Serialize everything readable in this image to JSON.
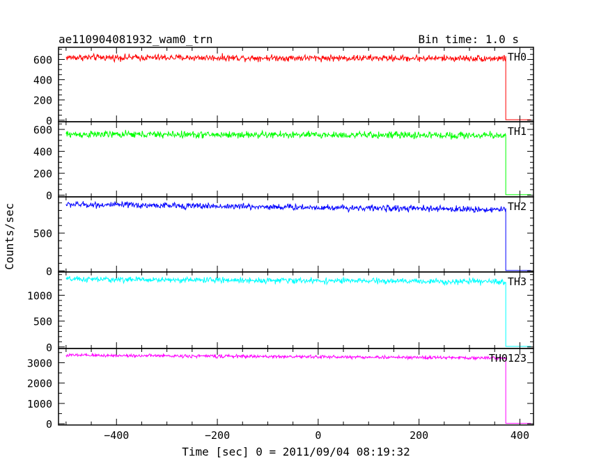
{
  "title": "ae110904081932_wam0_trn",
  "bin_time": "Bin time: 1.0 s",
  "ylabel": "Counts/sec",
  "xlabel": "Time [sec] 0 = 2011/09/04 08:19:32",
  "chart_data": [
    {
      "type": "line",
      "name": "TH0",
      "color": "#ff0000",
      "xlim": [
        -515,
        427
      ],
      "ylim": [
        -15,
        720
      ],
      "yticks": [
        0,
        200,
        400,
        600
      ],
      "minor_step": 50,
      "level_start": 620,
      "level_end": 610,
      "noise": 35,
      "drop_x": 372,
      "post_value": 5,
      "start_x": -500
    },
    {
      "type": "line",
      "name": "TH1",
      "color": "#00ff00",
      "xlim": [
        -515,
        427
      ],
      "ylim": [
        -15,
        670
      ],
      "yticks": [
        0,
        200,
        400,
        600
      ],
      "minor_step": 50,
      "level_start": 555,
      "level_end": 545,
      "noise": 35,
      "drop_x": 372,
      "post_value": 5,
      "start_x": -500
    },
    {
      "type": "line",
      "name": "TH2",
      "color": "#0000ff",
      "xlim": [
        -515,
        427
      ],
      "ylim": [
        -15,
        980
      ],
      "yticks": [
        0,
        500
      ],
      "minor_step": 100,
      "level_start": 880,
      "level_end": 810,
      "noise": 45,
      "drop_x": 372,
      "post_value": 5,
      "start_x": -500
    },
    {
      "type": "line",
      "name": "TH3",
      "color": "#00ffff",
      "xlim": [
        -515,
        427
      ],
      "ylim": [
        -30,
        1450
      ],
      "yticks": [
        0,
        500,
        1000
      ],
      "minor_step": 100,
      "level_start": 1310,
      "level_end": 1260,
      "noise": 60,
      "drop_x": 372,
      "post_value": 10,
      "start_x": -500
    },
    {
      "type": "line",
      "name": "TH0123",
      "color": "#ff00ff",
      "xlim": [
        -515,
        427
      ],
      "ylim": [
        -60,
        3700
      ],
      "yticks": [
        0,
        1000,
        2000,
        3000
      ],
      "minor_step": 500,
      "level_start": 3370,
      "level_end": 3230,
      "noise": 90,
      "drop_x": 372,
      "post_value": 20,
      "start_x": -500
    }
  ],
  "xticks": [
    -400,
    -200,
    0,
    200,
    400
  ],
  "x_minor_step": 50
}
